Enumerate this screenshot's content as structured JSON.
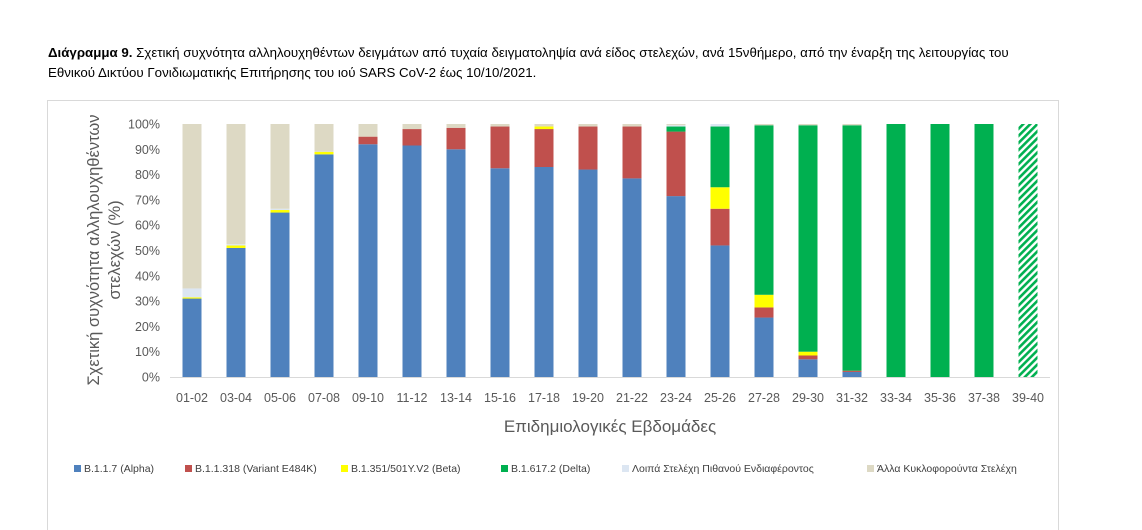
{
  "caption": {
    "label": "Διάγραμμα 9.",
    "text": " Σχετική συχνότητα αλληλουχηθέντων δειγμάτων από τυχαία δειγματοληψία ανά είδος στελεχών, ανά 15νθήμερο, από την έναρξη της λειτουργίας του Εθνικού Δικτύου Γονιδιωματικής Επιτήρησης του ιού SARS CoV-2 έως 10/10/2021."
  },
  "colors": {
    "alpha": "#4f81bd",
    "e484k": "#c0504d",
    "beta": "#ffff00",
    "delta": "#00b050",
    "other_interest": "#dce6f2",
    "other_circulating": "#ddd9c4",
    "grid": "#d9d9d9",
    "tick": "#595959"
  },
  "chart_data": {
    "type": "bar",
    "stacked": true,
    "xlabel": "Επιδημιολογικές Εβδομάδες",
    "ylabel": "Σχετική συχνότητα αλληλουχηθέντων στελεχών (%)",
    "ylim": [
      0,
      100
    ],
    "yticks": [
      "0%",
      "10%",
      "20%",
      "30%",
      "40%",
      "50%",
      "60%",
      "70%",
      "80%",
      "90%",
      "100%"
    ],
    "grid": false,
    "legend_position": "bottom",
    "categories": [
      "01-02",
      "03-04",
      "05-06",
      "07-08",
      "09-10",
      "11-12",
      "13-14",
      "15-16",
      "17-18",
      "19-20",
      "21-22",
      "23-24",
      "25-26",
      "27-28",
      "29-30",
      "31-32",
      "33-34",
      "35-36",
      "37-38",
      "39-40"
    ],
    "hatched_category": "39-40",
    "series": [
      {
        "name": "B.1.1.7 (Alpha)",
        "color_key": "alpha",
        "values": [
          31,
          51,
          65,
          88,
          92,
          91.5,
          90,
          82.5,
          83,
          82,
          78.5,
          71.5,
          52,
          23.5,
          7,
          2,
          0,
          0,
          0,
          0
        ]
      },
      {
        "name": "B.1.1.318 (Variant E484K)",
        "color_key": "e484k",
        "values": [
          0,
          0,
          0,
          0,
          3,
          6.5,
          8.5,
          16.5,
          15,
          17,
          20.5,
          25.5,
          14.5,
          4,
          1.5,
          0.5,
          0,
          0,
          0,
          0
        ]
      },
      {
        "name": "B.1.351/501Y.V2 (Beta)",
        "color_key": "beta",
        "values": [
          0.5,
          1,
          1,
          1,
          0,
          0,
          0,
          0,
          1,
          0,
          0,
          0,
          8.5,
          5,
          1.5,
          0,
          0,
          0,
          0,
          0
        ]
      },
      {
        "name": "B.1.617.2 (Delta)",
        "color_key": "delta",
        "values": [
          0,
          0,
          0,
          0,
          0,
          0,
          0,
          0,
          0,
          0,
          0,
          2,
          24,
          67,
          89.5,
          97,
          100,
          100,
          100,
          100
        ]
      },
      {
        "name": "Λοιπά Στελέχη Πιθανού Ενδιαφέροντος",
        "color_key": "other_interest",
        "values": [
          3.5,
          0.5,
          0.5,
          0,
          0,
          0,
          0,
          0,
          0,
          0,
          0,
          0.5,
          1,
          0,
          0,
          0,
          0,
          0,
          0,
          0
        ]
      },
      {
        "name": "Άλλα Κυκλοφορούντα Στελέχη",
        "color_key": "other_circulating",
        "values": [
          65,
          47.5,
          33.5,
          11,
          5,
          2,
          1.5,
          1,
          1,
          1,
          1,
          0.5,
          0,
          0.5,
          0.5,
          0.5,
          0,
          0,
          0,
          0
        ]
      }
    ]
  }
}
